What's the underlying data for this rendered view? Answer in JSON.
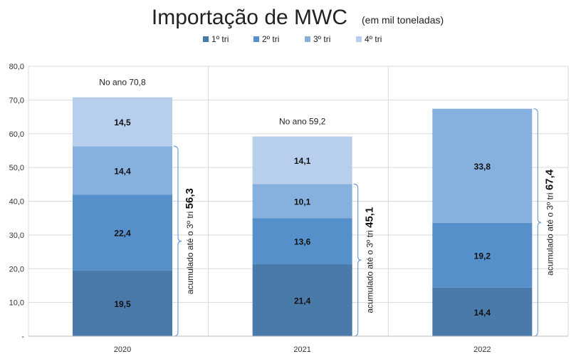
{
  "chart_data": {
    "type": "bar",
    "stacked": true,
    "title": "Importação de MWC",
    "subtitle": "(em mil toneladas)",
    "categories": [
      "2020",
      "2021",
      "2022"
    ],
    "series": [
      {
        "name": "1º tri",
        "values": [
          19.5,
          21.4,
          14.4
        ],
        "labels": [
          "19,5",
          "21,4",
          "14,4"
        ],
        "color": "#4a7aaa"
      },
      {
        "name": "2º tri",
        "values": [
          22.4,
          13.6,
          19.2
        ],
        "labels": [
          "22,4",
          "13,6",
          "19,2"
        ],
        "color": "#5590cb"
      },
      {
        "name": "3º tri",
        "values": [
          14.4,
          10.1,
          33.8
        ],
        "labels": [
          "14,4",
          "10,1",
          "33,8"
        ],
        "color": "#86b0de"
      },
      {
        "name": "4º tri",
        "values": [
          14.5,
          14.1,
          0
        ],
        "labels": [
          "14,5",
          "14,1",
          ""
        ],
        "color": "#b7cfec"
      }
    ],
    "yticks": [
      {
        "value": 0,
        "label": "-"
      },
      {
        "value": 10,
        "label": "10,0"
      },
      {
        "value": 20,
        "label": "20,0"
      },
      {
        "value": 30,
        "label": "30,0"
      },
      {
        "value": 40,
        "label": "40,0"
      },
      {
        "value": 50,
        "label": "50,0"
      },
      {
        "value": 60,
        "label": "60,0"
      },
      {
        "value": 70,
        "label": "70,0"
      },
      {
        "value": 80,
        "label": "80,0"
      }
    ],
    "ylim": [
      0,
      80
    ],
    "legend_position": "top",
    "annotations": [
      {
        "category": "2020",
        "year_total_label": "No ano 70,8",
        "year_total": 70.8,
        "cumulative_label": "acumulado até o 3º tri",
        "cumulative_value": "56,3",
        "cumulative": 56.3
      },
      {
        "category": "2021",
        "year_total_label": "No ano 59,2",
        "year_total": 59.2,
        "cumulative_label": "acumulado até o 3º tri",
        "cumulative_value": "45,1",
        "cumulative": 45.1
      },
      {
        "category": "2022",
        "year_total_label": "",
        "year_total": null,
        "cumulative_label": "acumulado até o 3º tri",
        "cumulative_value": "67,4",
        "cumulative": 67.4
      }
    ]
  }
}
